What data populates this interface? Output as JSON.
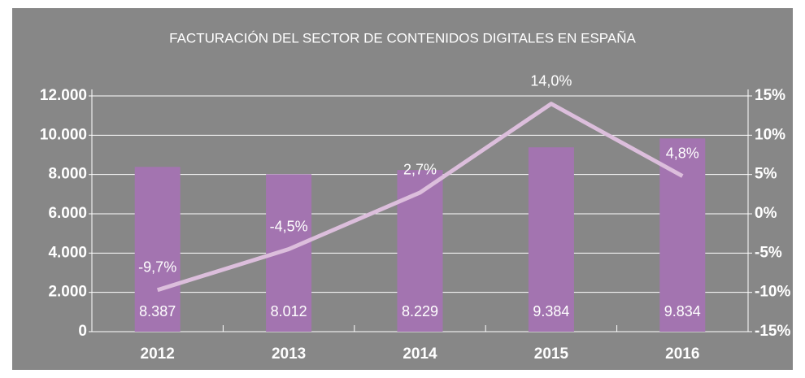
{
  "chart_data": {
    "type": "bar",
    "title": "FACTURACIÓN DEL SECTOR DE CONTENIDOS DIGITALES EN ESPAÑA",
    "categories": [
      "2012",
      "2013",
      "2014",
      "2015",
      "2016"
    ],
    "series": [
      {
        "type": "bar",
        "color": "#a374b0",
        "values": [
          8387,
          8012,
          8229,
          9384,
          9834
        ],
        "value_labels": [
          "8.387",
          "8.012",
          "8.229",
          "9.384",
          "9.834"
        ]
      },
      {
        "type": "line",
        "axis": "y2",
        "color": "#dcbedc",
        "values": [
          -9.7,
          -4.5,
          2.7,
          14.0,
          4.8
        ],
        "value_labels": [
          "-9,7%",
          "-4,5%",
          "2,7%",
          "14,0%",
          "4,8%"
        ]
      }
    ],
    "ylim": [
      0,
      12000
    ],
    "yticks": [
      0,
      {
        "value": 2000,
        "label": "2.000"
      },
      {
        "value": 4000,
        "label": "4.000"
      },
      {
        "value": 6000,
        "label": "6.000"
      },
      {
        "value": 8000,
        "label": "8.000"
      },
      {
        "value": 10000,
        "label": "10.000"
      },
      {
        "value": 12000,
        "label": "12.000"
      }
    ],
    "y2lim": [
      -15,
      15
    ],
    "y2ticks": [
      {
        "value": -15,
        "label": "-15%"
      },
      {
        "value": -10,
        "label": "-10%"
      },
      {
        "value": -5,
        "label": "-5%"
      },
      {
        "value": 0,
        "label": "0%"
      },
      {
        "value": 5,
        "label": "5%"
      },
      {
        "value": 10,
        "label": "10%"
      },
      {
        "value": 15,
        "label": "15%"
      }
    ],
    "grid": true
  }
}
